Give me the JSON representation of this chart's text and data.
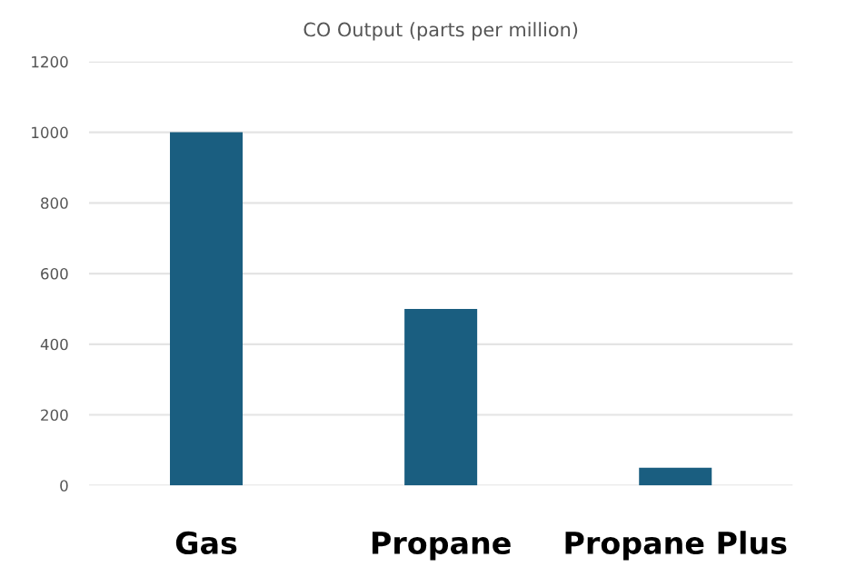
{
  "chart_data": {
    "type": "bar",
    "title": "CO Output (parts per million)",
    "categories": [
      "Gas",
      "Propane",
      "Propane Plus"
    ],
    "values": [
      1000,
      500,
      50
    ],
    "color": "#1a5e80",
    "ylim": [
      0,
      1200
    ],
    "yticks": [
      0,
      200,
      400,
      600,
      800,
      1000,
      1200
    ],
    "grid": "y"
  }
}
